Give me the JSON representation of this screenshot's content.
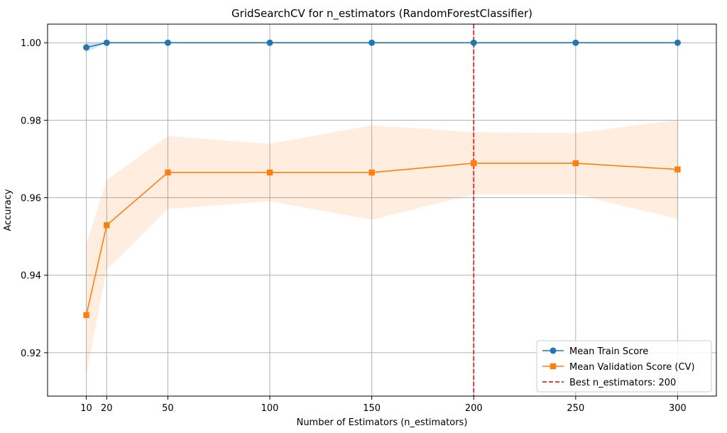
{
  "chart_data": {
    "type": "line",
    "title": "GridSearchCV for n_estimators (RandomForestClassifier)",
    "xlabel": "Number of Estimators (n_estimators)",
    "ylabel": "Accuracy",
    "x": [
      10,
      20,
      50,
      100,
      150,
      200,
      250,
      300
    ],
    "xticks": [
      10,
      20,
      50,
      100,
      150,
      200,
      250,
      300
    ],
    "yticks": [
      0.92,
      0.94,
      0.96,
      0.98,
      1.0
    ],
    "ytick_labels": [
      "0.92",
      "0.94",
      "0.96",
      "0.98",
      "1.00"
    ],
    "xlim": [
      -9,
      319
    ],
    "ylim": [
      0.9088,
      1.0048
    ],
    "grid": true,
    "legend_position": "lower-right",
    "series": [
      {
        "name": "Mean Train Score",
        "values": [
          0.9988,
          1.0,
          1.0,
          1.0,
          1.0,
          1.0,
          1.0,
          1.0
        ],
        "band_lower": [
          0.9975,
          1.0,
          1.0,
          1.0,
          1.0,
          1.0,
          1.0,
          1.0
        ],
        "band_upper": [
          1.0,
          1.0,
          1.0,
          1.0,
          1.0,
          1.0,
          1.0,
          1.0
        ],
        "color": "#1f77b4",
        "marker": "circle"
      },
      {
        "name": "Mean Validation Score (CV)",
        "values": [
          0.9297,
          0.9529,
          0.9665,
          0.9665,
          0.9665,
          0.9689,
          0.9689,
          0.9673
        ],
        "band_lower": [
          0.9145,
          0.9414,
          0.9571,
          0.9591,
          0.9543,
          0.9609,
          0.9609,
          0.9545
        ],
        "band_upper": [
          0.9481,
          0.9646,
          0.9759,
          0.9739,
          0.9787,
          0.9769,
          0.9767,
          0.9801
        ],
        "color": "#ff7f0e",
        "marker": "square"
      }
    ],
    "reference_line": {
      "name": "Best n_estimators: 200",
      "x": 200,
      "color": "#d62728",
      "style": "dashed"
    },
    "grid_color": "#b0b0b0",
    "band_color_train": "#1f77b4",
    "band_color_val": "#ff7f0e"
  }
}
